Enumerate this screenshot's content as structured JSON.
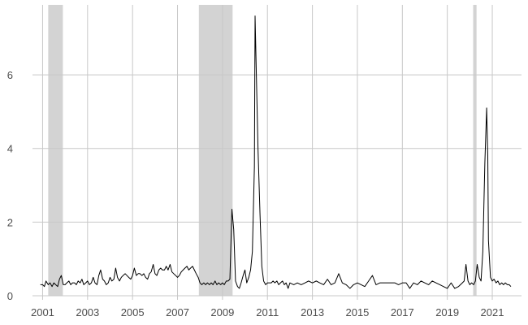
{
  "chart_data": {
    "type": "line",
    "title": "",
    "xlabel": "",
    "ylabel": "",
    "xlim": [
      2000.55,
      2022.3
    ],
    "ylim": [
      0,
      7.9
    ],
    "x_ticks": [
      2001,
      2003,
      2005,
      2007,
      2009,
      2011,
      2013,
      2015,
      2017,
      2019,
      2021
    ],
    "x_tick_labels": [
      "2001",
      "2003",
      "2005",
      "2007",
      "2009",
      "2011",
      "2013",
      "2015",
      "2017",
      "2019",
      "2021"
    ],
    "y_ticks": [
      0,
      2,
      4,
      6
    ],
    "y_tick_labels": [
      "0",
      "2",
      "4",
      "6"
    ],
    "grid": true,
    "legend": "none",
    "line_color": "#000000",
    "shade_color": "#d3d3d3",
    "grid_color": "#c8c8c8",
    "shaded_periods": [
      [
        2001.25,
        2001.9
      ],
      [
        2007.95,
        2009.45
      ],
      [
        2020.15,
        2020.3
      ]
    ],
    "series": [
      {
        "points": [
          [
            2000.9,
            0.3
          ],
          [
            2001.0,
            0.3
          ],
          [
            2001.08,
            0.25
          ],
          [
            2001.15,
            0.4
          ],
          [
            2001.25,
            0.3
          ],
          [
            2001.33,
            0.35
          ],
          [
            2001.42,
            0.25
          ],
          [
            2001.5,
            0.35
          ],
          [
            2001.58,
            0.3
          ],
          [
            2001.67,
            0.25
          ],
          [
            2001.75,
            0.45
          ],
          [
            2001.83,
            0.55
          ],
          [
            2001.92,
            0.3
          ],
          [
            2002.0,
            0.3
          ],
          [
            2002.08,
            0.35
          ],
          [
            2002.17,
            0.4
          ],
          [
            2002.25,
            0.3
          ],
          [
            2002.33,
            0.35
          ],
          [
            2002.42,
            0.35
          ],
          [
            2002.5,
            0.3
          ],
          [
            2002.58,
            0.4
          ],
          [
            2002.67,
            0.35
          ],
          [
            2002.75,
            0.45
          ],
          [
            2002.83,
            0.3
          ],
          [
            2002.92,
            0.35
          ],
          [
            2003.0,
            0.4
          ],
          [
            2003.08,
            0.3
          ],
          [
            2003.17,
            0.35
          ],
          [
            2003.25,
            0.5
          ],
          [
            2003.33,
            0.35
          ],
          [
            2003.42,
            0.3
          ],
          [
            2003.5,
            0.55
          ],
          [
            2003.58,
            0.7
          ],
          [
            2003.67,
            0.45
          ],
          [
            2003.75,
            0.4
          ],
          [
            2003.83,
            0.3
          ],
          [
            2003.92,
            0.35
          ],
          [
            2004.0,
            0.5
          ],
          [
            2004.08,
            0.4
          ],
          [
            2004.17,
            0.45
          ],
          [
            2004.25,
            0.75
          ],
          [
            2004.33,
            0.5
          ],
          [
            2004.42,
            0.4
          ],
          [
            2004.5,
            0.5
          ],
          [
            2004.58,
            0.55
          ],
          [
            2004.67,
            0.6
          ],
          [
            2004.75,
            0.55
          ],
          [
            2004.83,
            0.5
          ],
          [
            2004.92,
            0.45
          ],
          [
            2005.0,
            0.55
          ],
          [
            2005.08,
            0.75
          ],
          [
            2005.17,
            0.55
          ],
          [
            2005.25,
            0.6
          ],
          [
            2005.33,
            0.6
          ],
          [
            2005.42,
            0.55
          ],
          [
            2005.5,
            0.6
          ],
          [
            2005.58,
            0.5
          ],
          [
            2005.67,
            0.45
          ],
          [
            2005.75,
            0.6
          ],
          [
            2005.83,
            0.65
          ],
          [
            2005.92,
            0.85
          ],
          [
            2006.0,
            0.6
          ],
          [
            2006.08,
            0.55
          ],
          [
            2006.17,
            0.7
          ],
          [
            2006.25,
            0.75
          ],
          [
            2006.33,
            0.7
          ],
          [
            2006.42,
            0.7
          ],
          [
            2006.5,
            0.8
          ],
          [
            2006.58,
            0.7
          ],
          [
            2006.67,
            0.85
          ],
          [
            2006.75,
            0.65
          ],
          [
            2006.83,
            0.6
          ],
          [
            2006.92,
            0.55
          ],
          [
            2007.0,
            0.5
          ],
          [
            2007.08,
            0.55
          ],
          [
            2007.17,
            0.65
          ],
          [
            2007.25,
            0.7
          ],
          [
            2007.33,
            0.75
          ],
          [
            2007.42,
            0.8
          ],
          [
            2007.5,
            0.7
          ],
          [
            2007.58,
            0.75
          ],
          [
            2007.67,
            0.8
          ],
          [
            2007.75,
            0.7
          ],
          [
            2007.83,
            0.6
          ],
          [
            2007.92,
            0.5
          ],
          [
            2008.0,
            0.35
          ],
          [
            2008.08,
            0.3
          ],
          [
            2008.17,
            0.35
          ],
          [
            2008.25,
            0.3
          ],
          [
            2008.33,
            0.35
          ],
          [
            2008.42,
            0.3
          ],
          [
            2008.5,
            0.35
          ],
          [
            2008.58,
            0.3
          ],
          [
            2008.67,
            0.4
          ],
          [
            2008.75,
            0.3
          ],
          [
            2008.83,
            0.35
          ],
          [
            2008.92,
            0.3
          ],
          [
            2009.0,
            0.35
          ],
          [
            2009.08,
            0.3
          ],
          [
            2009.17,
            0.4
          ],
          [
            2009.25,
            0.4
          ],
          [
            2009.33,
            0.45
          ],
          [
            2009.42,
            2.35
          ],
          [
            2009.5,
            1.8
          ],
          [
            2009.58,
            0.4
          ],
          [
            2009.67,
            0.25
          ],
          [
            2009.75,
            0.2
          ],
          [
            2009.83,
            0.35
          ],
          [
            2009.92,
            0.55
          ],
          [
            2010.0,
            0.7
          ],
          [
            2010.08,
            0.35
          ],
          [
            2010.17,
            0.5
          ],
          [
            2010.25,
            0.7
          ],
          [
            2010.33,
            1.2
          ],
          [
            2010.42,
            3.5
          ],
          [
            2010.45,
            7.6
          ],
          [
            2010.5,
            6.2
          ],
          [
            2010.58,
            4.0
          ],
          [
            2010.67,
            2.2
          ],
          [
            2010.75,
            0.8
          ],
          [
            2010.83,
            0.4
          ],
          [
            2010.92,
            0.3
          ],
          [
            2011.0,
            0.35
          ],
          [
            2011.08,
            0.35
          ],
          [
            2011.17,
            0.35
          ],
          [
            2011.25,
            0.4
          ],
          [
            2011.33,
            0.35
          ],
          [
            2011.42,
            0.4
          ],
          [
            2011.5,
            0.3
          ],
          [
            2011.58,
            0.35
          ],
          [
            2011.67,
            0.4
          ],
          [
            2011.75,
            0.3
          ],
          [
            2011.83,
            0.35
          ],
          [
            2011.92,
            0.2
          ],
          [
            2012.0,
            0.35
          ],
          [
            2012.17,
            0.3
          ],
          [
            2012.33,
            0.35
          ],
          [
            2012.5,
            0.3
          ],
          [
            2012.67,
            0.35
          ],
          [
            2012.83,
            0.4
          ],
          [
            2013.0,
            0.35
          ],
          [
            2013.17,
            0.4
          ],
          [
            2013.33,
            0.35
          ],
          [
            2013.5,
            0.3
          ],
          [
            2013.67,
            0.45
          ],
          [
            2013.83,
            0.3
          ],
          [
            2014.0,
            0.35
          ],
          [
            2014.17,
            0.6
          ],
          [
            2014.33,
            0.35
          ],
          [
            2014.5,
            0.3
          ],
          [
            2014.67,
            0.2
          ],
          [
            2014.83,
            0.3
          ],
          [
            2015.0,
            0.35
          ],
          [
            2015.17,
            0.3
          ],
          [
            2015.33,
            0.25
          ],
          [
            2015.5,
            0.4
          ],
          [
            2015.67,
            0.55
          ],
          [
            2015.83,
            0.3
          ],
          [
            2016.0,
            0.35
          ],
          [
            2016.17,
            0.35
          ],
          [
            2016.33,
            0.35
          ],
          [
            2016.5,
            0.35
          ],
          [
            2016.67,
            0.35
          ],
          [
            2016.83,
            0.3
          ],
          [
            2017.0,
            0.35
          ],
          [
            2017.17,
            0.35
          ],
          [
            2017.33,
            0.2
          ],
          [
            2017.5,
            0.35
          ],
          [
            2017.67,
            0.3
          ],
          [
            2017.83,
            0.4
          ],
          [
            2018.0,
            0.35
          ],
          [
            2018.17,
            0.3
          ],
          [
            2018.33,
            0.4
          ],
          [
            2018.5,
            0.35
          ],
          [
            2018.67,
            0.3
          ],
          [
            2018.83,
            0.25
          ],
          [
            2019.0,
            0.2
          ],
          [
            2019.17,
            0.35
          ],
          [
            2019.33,
            0.2
          ],
          [
            2019.5,
            0.25
          ],
          [
            2019.67,
            0.35
          ],
          [
            2019.75,
            0.4
          ],
          [
            2019.83,
            0.85
          ],
          [
            2019.92,
            0.4
          ],
          [
            2020.0,
            0.3
          ],
          [
            2020.08,
            0.35
          ],
          [
            2020.17,
            0.3
          ],
          [
            2020.25,
            0.4
          ],
          [
            2020.33,
            0.85
          ],
          [
            2020.42,
            0.5
          ],
          [
            2020.5,
            0.4
          ],
          [
            2020.58,
            1.2
          ],
          [
            2020.67,
            3.6
          ],
          [
            2020.75,
            5.1
          ],
          [
            2020.8,
            3.8
          ],
          [
            2020.83,
            1.5
          ],
          [
            2020.92,
            0.5
          ],
          [
            2021.0,
            0.4
          ],
          [
            2021.08,
            0.45
          ],
          [
            2021.17,
            0.35
          ],
          [
            2021.25,
            0.4
          ],
          [
            2021.33,
            0.3
          ],
          [
            2021.42,
            0.35
          ],
          [
            2021.5,
            0.3
          ],
          [
            2021.58,
            0.35
          ],
          [
            2021.67,
            0.3
          ],
          [
            2021.75,
            0.3
          ],
          [
            2021.83,
            0.25
          ]
        ]
      }
    ]
  }
}
